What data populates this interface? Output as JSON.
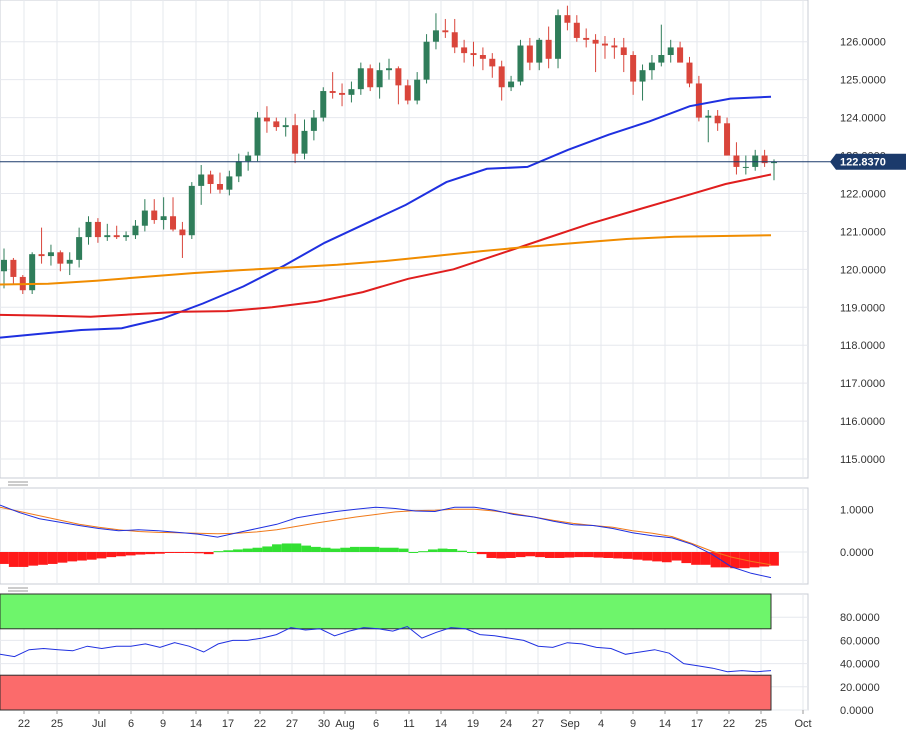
{
  "chart_data": [
    {
      "type": "candlestick",
      "title": "",
      "yticks": [
        "126.0000",
        "125.0000",
        "124.0000",
        "123.0000",
        "122.0000",
        "121.0000",
        "120.0000",
        "119.0000",
        "118.0000",
        "117.0000",
        "116.0000",
        "115.0000"
      ],
      "ylim": [
        114.5,
        127.1
      ],
      "last_price": "122.8370",
      "last_price_value": 122.837,
      "candles": [
        [
          119.95,
          120.55,
          119.5,
          120.25
        ],
        [
          120.25,
          120.3,
          119.6,
          119.8
        ],
        [
          119.8,
          119.85,
          119.35,
          119.45
        ],
        [
          119.45,
          120.45,
          119.35,
          120.4
        ],
        [
          120.4,
          121.1,
          120.15,
          120.35
        ],
        [
          120.35,
          120.65,
          120.1,
          120.45
        ],
        [
          120.45,
          120.5,
          119.95,
          120.15
        ],
        [
          120.15,
          120.45,
          119.85,
          120.25
        ],
        [
          120.25,
          121.1,
          120.05,
          120.85
        ],
        [
          120.85,
          121.4,
          120.65,
          121.25
        ],
        [
          121.25,
          121.35,
          120.7,
          120.85
        ],
        [
          120.85,
          121.2,
          120.75,
          120.9
        ],
        [
          120.9,
          121.15,
          120.8,
          120.85
        ],
        [
          120.85,
          121.0,
          120.75,
          120.9
        ],
        [
          120.9,
          121.3,
          120.8,
          121.15
        ],
        [
          121.15,
          121.85,
          121.0,
          121.55
        ],
        [
          121.55,
          121.85,
          121.2,
          121.3
        ],
        [
          121.3,
          121.9,
          121.05,
          121.4
        ],
        [
          121.4,
          121.9,
          121.0,
          121.05
        ],
        [
          121.05,
          121.25,
          120.3,
          120.9
        ],
        [
          120.9,
          122.3,
          120.8,
          122.2
        ],
        [
          122.2,
          122.75,
          121.7,
          122.5
        ],
        [
          122.5,
          122.6,
          122.0,
          122.25
        ],
        [
          122.25,
          122.55,
          122.0,
          122.1
        ],
        [
          122.1,
          122.6,
          121.95,
          122.45
        ],
        [
          122.45,
          123.05,
          122.3,
          122.85
        ],
        [
          122.85,
          123.1,
          122.6,
          123.0
        ],
        [
          123.0,
          124.15,
          122.85,
          124.0
        ],
        [
          124.0,
          124.3,
          123.6,
          123.9
        ],
        [
          123.9,
          124.0,
          123.65,
          123.75
        ],
        [
          123.75,
          124.0,
          123.5,
          123.8
        ],
        [
          123.8,
          124.1,
          122.8,
          123.05
        ],
        [
          123.05,
          123.95,
          122.9,
          123.65
        ],
        [
          123.65,
          124.2,
          123.4,
          124.0
        ],
        [
          124.0,
          124.8,
          123.9,
          124.7
        ],
        [
          124.7,
          125.2,
          124.5,
          124.65
        ],
        [
          124.65,
          124.9,
          124.3,
          124.6
        ],
        [
          124.6,
          124.95,
          124.4,
          124.75
        ],
        [
          124.75,
          125.45,
          124.6,
          125.3
        ],
        [
          125.3,
          125.4,
          124.7,
          124.8
        ],
        [
          124.8,
          125.45,
          124.5,
          125.25
        ],
        [
          125.25,
          125.55,
          125.0,
          125.3
        ],
        [
          125.3,
          125.35,
          124.35,
          124.85
        ],
        [
          124.85,
          125.0,
          124.35,
          124.45
        ],
        [
          124.45,
          125.2,
          124.35,
          125.0
        ],
        [
          125.0,
          126.2,
          124.9,
          126.0
        ],
        [
          126.0,
          126.75,
          125.8,
          126.3
        ],
        [
          126.3,
          126.6,
          126.1,
          126.25
        ],
        [
          126.25,
          126.6,
          125.7,
          125.85
        ],
        [
          125.85,
          126.05,
          125.45,
          125.7
        ],
        [
          125.7,
          126.0,
          125.35,
          125.65
        ],
        [
          125.65,
          125.85,
          125.25,
          125.55
        ],
        [
          125.55,
          125.7,
          125.05,
          125.35
        ],
        [
          125.35,
          125.5,
          124.45,
          124.8
        ],
        [
          124.8,
          125.1,
          124.7,
          124.95
        ],
        [
          124.95,
          126.05,
          124.85,
          125.9
        ],
        [
          125.9,
          126.1,
          125.25,
          125.45
        ],
        [
          125.45,
          126.1,
          125.25,
          126.05
        ],
        [
          126.05,
          126.4,
          125.3,
          125.55
        ],
        [
          125.55,
          126.85,
          125.3,
          126.7
        ],
        [
          126.7,
          126.95,
          126.3,
          126.5
        ],
        [
          126.5,
          126.7,
          126.0,
          126.1
        ],
        [
          126.1,
          126.35,
          125.85,
          126.05
        ],
        [
          126.05,
          126.2,
          125.2,
          125.95
        ],
        [
          125.95,
          126.15,
          125.55,
          125.9
        ],
        [
          125.9,
          126.1,
          125.55,
          125.85
        ],
        [
          125.85,
          126.1,
          125.2,
          125.65
        ],
        [
          125.65,
          125.75,
          124.6,
          124.95
        ],
        [
          124.95,
          125.4,
          124.45,
          125.25
        ],
        [
          125.25,
          125.65,
          125.0,
          125.45
        ],
        [
          125.45,
          126.45,
          125.35,
          125.65
        ],
        [
          125.65,
          126.05,
          125.45,
          125.85
        ],
        [
          125.85,
          126.0,
          125.5,
          125.45
        ],
        [
          125.45,
          125.6,
          124.8,
          124.9
        ],
        [
          124.9,
          125.1,
          123.9,
          124.0
        ],
        [
          124.0,
          124.2,
          123.35,
          124.05
        ],
        [
          124.05,
          124.2,
          123.65,
          123.85
        ],
        [
          123.85,
          124.0,
          123.0,
          123.0
        ],
        [
          123.0,
          123.35,
          122.5,
          122.7
        ],
        [
          122.7,
          123.0,
          122.5,
          122.7
        ],
        [
          122.7,
          123.15,
          122.6,
          123.0
        ],
        [
          123.0,
          123.15,
          122.7,
          122.8
        ],
        [
          122.8,
          122.9,
          122.35,
          122.837
        ]
      ],
      "ma_series": [
        {
          "color": "#1f30e0",
          "values": [
            118.2,
            118.3,
            118.4,
            118.45,
            118.7,
            119.1,
            119.55,
            120.1,
            120.7,
            121.2,
            121.7,
            122.3,
            122.65,
            122.7,
            123.15,
            123.55,
            123.9,
            124.3,
            124.5,
            124.55
          ]
        },
        {
          "color": "#e01e1e",
          "values": [
            118.8,
            118.78,
            118.75,
            118.82,
            118.88,
            118.9,
            119.0,
            119.15,
            119.4,
            119.75,
            120.0,
            120.4,
            120.8,
            121.2,
            121.55,
            121.9,
            122.25,
            122.5
          ]
        },
        {
          "color": "#f08c00",
          "values": [
            119.6,
            119.62,
            119.7,
            119.8,
            119.9,
            119.98,
            120.05,
            120.12,
            120.22,
            120.35,
            120.48,
            120.6,
            120.7,
            120.8,
            120.86,
            120.88,
            120.9
          ]
        }
      ]
    },
    {
      "type": "macd",
      "yticks": [
        "1.0000",
        "0.0000"
      ],
      "ylim": [
        -0.75,
        1.5
      ],
      "macd_line": [
        1.1,
        0.92,
        0.78,
        0.7,
        0.62,
        0.55,
        0.5,
        0.52,
        0.5,
        0.46,
        0.42,
        0.35,
        0.45,
        0.55,
        0.65,
        0.8,
        0.88,
        0.95,
        1.0,
        1.05,
        1.02,
        0.96,
        0.95,
        1.05,
        1.05,
        0.98,
        0.88,
        0.82,
        0.72,
        0.64,
        0.62,
        0.55,
        0.45,
        0.38,
        0.33,
        0.18,
        -0.05,
        -0.35,
        -0.5,
        -0.6
      ],
      "signal_line": [
        1.05,
        0.95,
        0.85,
        0.75,
        0.65,
        0.58,
        0.52,
        0.48,
        0.46,
        0.45,
        0.44,
        0.43,
        0.44,
        0.47,
        0.52,
        0.6,
        0.68,
        0.75,
        0.82,
        0.88,
        0.94,
        0.97,
        0.98,
        1.0,
        1.0,
        0.96,
        0.9,
        0.82,
        0.74,
        0.67,
        0.62,
        0.58,
        0.5,
        0.44,
        0.36,
        0.2,
        0.02,
        -0.12,
        -0.22,
        -0.3
      ],
      "histogram": [
        -0.28,
        -0.35,
        -0.35,
        -0.32,
        -0.3,
        -0.28,
        -0.25,
        -0.22,
        -0.2,
        -0.18,
        -0.15,
        -0.12,
        -0.1,
        -0.08,
        -0.06,
        -0.05,
        -0.04,
        -0.02,
        -0.02,
        -0.01,
        -0.03,
        -0.05,
        0.02,
        0.04,
        0.06,
        0.08,
        0.1,
        0.13,
        0.18,
        0.2,
        0.2,
        0.15,
        0.12,
        0.1,
        0.08,
        0.1,
        0.12,
        0.12,
        0.12,
        0.1,
        0.1,
        0.08,
        0.0,
        0.02,
        0.06,
        0.08,
        0.07,
        0.03,
        0.0,
        -0.05,
        -0.14,
        -0.15,
        -0.14,
        -0.12,
        -0.1,
        -0.12,
        -0.14,
        -0.14,
        -0.13,
        -0.12,
        -0.12,
        -0.13,
        -0.14,
        -0.15,
        -0.16,
        -0.18,
        -0.2,
        -0.22,
        -0.24,
        -0.2,
        -0.26,
        -0.3,
        -0.3,
        -0.36,
        -0.36,
        -0.38,
        -0.38,
        -0.36,
        -0.34,
        -0.32
      ]
    },
    {
      "type": "rsi",
      "yticks": [
        "80.0000",
        "60.0000",
        "40.0000",
        "20.0000",
        "0.0000"
      ],
      "ylim": [
        0,
        100
      ],
      "overbought": 70,
      "oversold": 30,
      "values": [
        48,
        46,
        52,
        53,
        52,
        51,
        55,
        53,
        55,
        55,
        57,
        54,
        58,
        55,
        50,
        57,
        60,
        60,
        62,
        65,
        71,
        69,
        70,
        64,
        68,
        71,
        70,
        68,
        72,
        62,
        67,
        71,
        70,
        65,
        64,
        62,
        60,
        55,
        54,
        58,
        57,
        54,
        53,
        48,
        50,
        52,
        49,
        40,
        38,
        36,
        33,
        34,
        33,
        34
      ]
    }
  ],
  "x_axis": {
    "ticks": [
      "22",
      "25",
      "Jul",
      "6",
      "9",
      "14",
      "17",
      "22",
      "27",
      "30",
      "Aug",
      "6",
      "11",
      "14",
      "19",
      "24",
      "27",
      "Sep",
      "4",
      "9",
      "14",
      "17",
      "22",
      "25",
      "Oct"
    ]
  }
}
